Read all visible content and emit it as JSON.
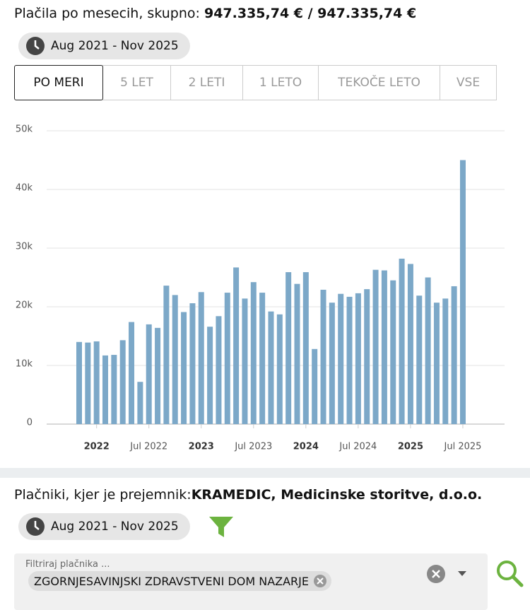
{
  "header": {
    "prefix": "Plačila po mesecih, skupno:",
    "total": "947.335,74 € / 947.335,74 €"
  },
  "date_range": "Aug 2021 - Nov 2025",
  "tabs": [
    "PO MERI",
    "5 LET",
    "2 LETI",
    "1 LETO",
    "TEKOČE LETO",
    "VSE"
  ],
  "chart_data": {
    "type": "bar",
    "color": "#7ca8c8",
    "grid": true,
    "x": [
      "2021-11",
      "2021-12",
      "2022-01",
      "2022-02",
      "2022-03",
      "2022-04",
      "2022-05",
      "2022-06",
      "2022-07",
      "2022-08",
      "2022-09",
      "2022-10",
      "2022-11",
      "2022-12",
      "2023-01",
      "2023-02",
      "2023-03",
      "2023-04",
      "2023-05",
      "2023-06",
      "2023-07",
      "2023-08",
      "2023-09",
      "2023-10",
      "2023-11",
      "2023-12",
      "2024-01",
      "2024-02",
      "2024-03",
      "2024-04",
      "2024-05",
      "2024-06",
      "2024-07",
      "2024-08",
      "2024-09",
      "2024-10",
      "2024-11",
      "2024-12",
      "2025-01",
      "2025-02",
      "2025-03",
      "2025-04",
      "2025-05",
      "2025-06",
      "2025-07"
    ],
    "values": [
      14000,
      13900,
      14100,
      11700,
      11800,
      14300,
      17400,
      7200,
      17000,
      16400,
      23600,
      22000,
      19100,
      20600,
      22500,
      16600,
      18400,
      22400,
      26700,
      21400,
      24200,
      22400,
      19200,
      18700,
      25900,
      23900,
      25900,
      12800,
      22900,
      20700,
      22200,
      21700,
      22300,
      23000,
      26300,
      26200,
      24500,
      28200,
      27300,
      21900,
      25000,
      20700,
      21400,
      23500,
      45000
    ],
    "ylim": [
      0,
      50000
    ],
    "yticks": [
      0,
      {
        "value": 10000,
        "label": "10k"
      },
      {
        "value": 20000,
        "label": "20k"
      },
      {
        "value": 30000,
        "label": "30k"
      },
      {
        "value": 40000,
        "label": "40k"
      },
      {
        "value": 50000,
        "label": "50k"
      }
    ],
    "xticks": [
      {
        "value": "2022-01",
        "label": "2022"
      },
      {
        "value": "2022-07",
        "label": "Jul 2022"
      },
      {
        "value": "2023-01",
        "label": "2023"
      },
      {
        "value": "2023-07",
        "label": "Jul 2023"
      },
      {
        "value": "2024-01",
        "label": "2024"
      },
      {
        "value": "2024-07",
        "label": "Jul 2024"
      },
      {
        "value": "2025-01",
        "label": "2025"
      },
      {
        "value": "2025-07",
        "label": "Jul 2025"
      }
    ]
  },
  "payers": {
    "prefix": "Plačniki, kjer je prejemnik:",
    "recipient": "KRAMEDIC, Medicinske storitve, d.o.o.",
    "date_range": "Aug 2021 - Nov 2025",
    "filter_label": "Filtriraj plačnika ...",
    "chip": "ZGORNJESAVINJSKI ZDRAVSTVENI DOM NAZARJE"
  }
}
